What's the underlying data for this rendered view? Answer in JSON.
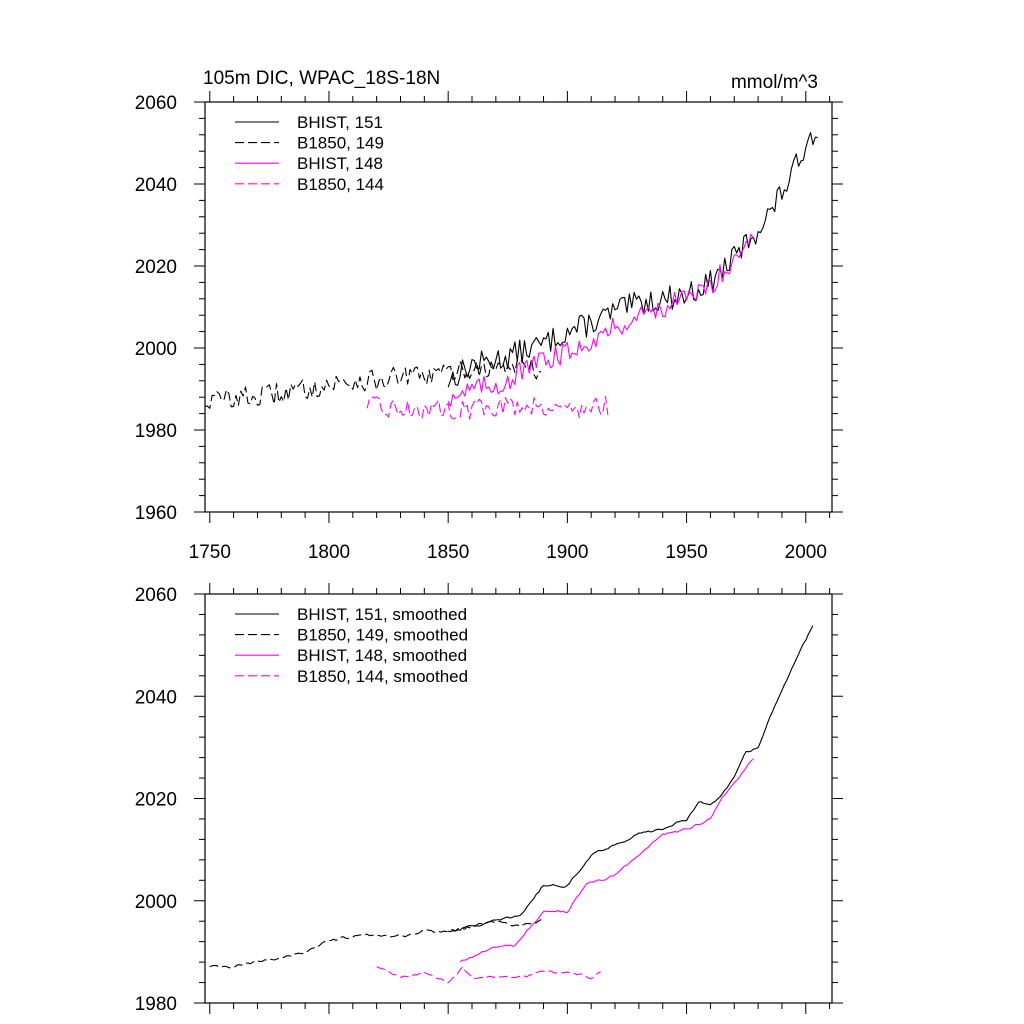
{
  "chart_data": [
    {
      "type": "line",
      "title": "105m DIC, WPAC_18S-18N",
      "units": "mmol/m^3",
      "xlabel": "",
      "ylabel": "",
      "xlim": [
        1748,
        2011
      ],
      "ylim": [
        1960,
        2060
      ],
      "x_ticks": [
        1750,
        1800,
        1850,
        1900,
        1950,
        2000
      ],
      "x_tick_labels": [
        "1750",
        "1800",
        "1850",
        "1900",
        "1950",
        "2000"
      ],
      "y_ticks": [
        1960,
        1980,
        2000,
        2020,
        2040,
        2060
      ],
      "y_tick_labels": [
        "1960",
        "1980",
        "2000",
        "2020",
        "2040",
        "2060"
      ],
      "legend_position": "top-left",
      "series": [
        {
          "name": "BHIST, 151",
          "style": "solid",
          "color": "#000000",
          "x": [
            1850,
            1860,
            1870,
            1880,
            1890,
            1900,
            1910,
            1920,
            1930,
            1940,
            1950,
            1960,
            1970,
            1980,
            1985,
            1990,
            1995,
            2000,
            2005
          ],
          "values": [
            1992,
            1996,
            1997,
            1999,
            2001,
            2004,
            2006,
            2009,
            2011,
            2012,
            2013,
            2016,
            2022,
            2029,
            2033,
            2038,
            2043,
            2050,
            2054
          ],
          "noise": 3.0
        },
        {
          "name": "B1850, 149",
          "style": "dashed",
          "color": "#000000",
          "x": [
            1748,
            1760,
            1770,
            1780,
            1790,
            1800,
            1810,
            1820,
            1830,
            1840,
            1850,
            1860,
            1870,
            1880,
            1889
          ],
          "values": [
            1987,
            1988,
            1988,
            1989,
            1990,
            1991,
            1992,
            1992,
            1993,
            1993,
            1994,
            1995,
            1995,
            1996,
            1994
          ],
          "noise": 2.6
        },
        {
          "name": "BHIST, 148",
          "style": "solid",
          "color": "#ff00ff",
          "x": [
            1850,
            1860,
            1870,
            1875,
            1880,
            1890,
            1900,
            1910,
            1920,
            1930,
            1940,
            1950,
            1960,
            1970,
            1978
          ],
          "values": [
            1988,
            1990,
            1991,
            1992,
            1994,
            1997,
            1999,
            2002,
            2005,
            2008,
            2010,
            2012,
            2015,
            2022,
            2028
          ],
          "noise": 2.6
        },
        {
          "name": "B1850, 144",
          "style": "dashed",
          "color": "#ff00ff",
          "x": [
            1816,
            1830,
            1845,
            1860,
            1875,
            1890,
            1905,
            1917
          ],
          "values": [
            1986,
            1985,
            1985,
            1985,
            1986,
            1986,
            1985,
            1986
          ],
          "noise": 2.4
        }
      ]
    },
    {
      "type": "line",
      "title": "",
      "xlabel": "",
      "ylabel": "",
      "xlim": [
        1748,
        2011
      ],
      "ylim": [
        1980,
        2060
      ],
      "x_ticks": [
        1750,
        1800,
        1850,
        1900,
        1950,
        2000
      ],
      "y_ticks": [
        1980,
        2000,
        2020,
        2040,
        2060
      ],
      "y_tick_labels": [
        "1980",
        "2000",
        "2020",
        "2040",
        "2060"
      ],
      "legend_position": "top-left",
      "series": [
        {
          "name": "BHIST, 151, smoothed",
          "style": "solid",
          "color": "#000000",
          "x": [
            1850,
            1860,
            1870,
            1880,
            1890,
            1900,
            1910,
            1920,
            1930,
            1940,
            1950,
            1955,
            1960,
            1965,
            1970,
            1975,
            1980,
            1985,
            1990,
            1995,
            2000,
            2003
          ],
          "values": [
            1994,
            1995,
            1996,
            1997,
            2003,
            2003,
            2009,
            2011,
            2013,
            2014,
            2016,
            2019,
            2019,
            2021,
            2024,
            2029,
            2030,
            2036,
            2041,
            2046,
            2051,
            2054
          ],
          "noise": 0.5
        },
        {
          "name": "B1850, 149, smoothed",
          "style": "dashed",
          "color": "#000000",
          "x": [
            1750,
            1760,
            1770,
            1780,
            1790,
            1800,
            1810,
            1820,
            1830,
            1840,
            1850,
            1860,
            1870,
            1880,
            1889
          ],
          "values": [
            1987,
            1987,
            1988,
            1989,
            1990,
            1992,
            1993,
            1993,
            1993,
            1994,
            1994,
            1995,
            1996,
            1995,
            1996
          ],
          "noise": 0.6
        },
        {
          "name": "BHIST, 148, smoothed",
          "style": "solid",
          "color": "#ff00ff",
          "x": [
            1855,
            1860,
            1870,
            1878,
            1883,
            1890,
            1900,
            1908,
            1920,
            1930,
            1940,
            1950,
            1960,
            1965,
            1970,
            1978
          ],
          "values": [
            1988,
            1989,
            1991,
            1991,
            1994,
            1998,
            1998,
            2003,
            2005,
            2009,
            2013,
            2014,
            2016,
            2020,
            2023,
            2028
          ],
          "noise": 0.5
        },
        {
          "name": "B1850, 144, smoothed",
          "style": "dashed",
          "color": "#ff00ff",
          "x": [
            1820,
            1830,
            1840,
            1850,
            1856,
            1860,
            1870,
            1880,
            1890,
            1900,
            1910,
            1914
          ],
          "values": [
            1987,
            1985,
            1986,
            1984,
            1987,
            1985,
            1985,
            1985,
            1986,
            1986,
            1985,
            1986
          ],
          "noise": 0.5
        }
      ]
    }
  ]
}
